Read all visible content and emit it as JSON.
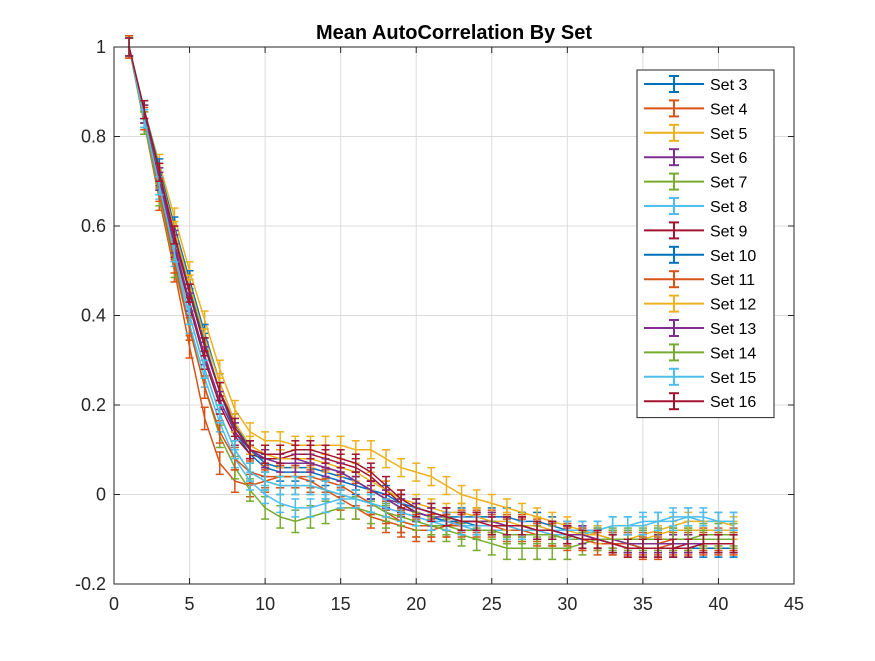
{
  "chart_data": {
    "type": "line",
    "title": "Mean AutoCorrelation By Set",
    "xlabel": "",
    "ylabel": "",
    "xlim": [
      0,
      45
    ],
    "ylim": [
      -0.2,
      1
    ],
    "xticks": [
      "0",
      "5",
      "10",
      "15",
      "20",
      "25",
      "30",
      "35",
      "40",
      "45"
    ],
    "yticks": [
      "-0.2",
      "0",
      "0.2",
      "0.4",
      "0.6",
      "0.8",
      "1"
    ],
    "grid": true,
    "error_bars": true,
    "legend_position": "top-right",
    "x": [
      1,
      2,
      3,
      4,
      5,
      6,
      7,
      8,
      9,
      10,
      11,
      12,
      13,
      14,
      15,
      16,
      17,
      18,
      19,
      20,
      21,
      22,
      23,
      24,
      25,
      26,
      27,
      28,
      29,
      30,
      31,
      32,
      33,
      34,
      35,
      36,
      37,
      38,
      39,
      40,
      41
    ],
    "series": [
      {
        "name": "Set 3",
        "color": "#0072BD",
        "err": 0.02,
        "values": [
          1,
          0.85,
          0.71,
          0.58,
          0.46,
          0.34,
          0.23,
          0.14,
          0.09,
          0.06,
          0.05,
          0.05,
          0.05,
          0.04,
          0.03,
          0.02,
          0.01,
          0,
          -0.02,
          -0.03,
          -0.04,
          -0.05,
          -0.05,
          -0.05,
          -0.05,
          -0.05,
          -0.06,
          -0.06,
          -0.07,
          -0.08,
          -0.08,
          -0.09,
          -0.1,
          -0.11,
          -0.12,
          -0.12,
          -0.12,
          -0.12,
          -0.11,
          -0.11,
          -0.11
        ]
      },
      {
        "name": "Set 4",
        "color": "#D95319",
        "err": 0.025,
        "values": [
          1,
          0.83,
          0.66,
          0.5,
          0.33,
          0.17,
          0.07,
          0.03,
          0.02,
          0.03,
          0.04,
          0.04,
          0.03,
          0.01,
          -0.01,
          -0.03,
          -0.05,
          -0.06,
          -0.07,
          -0.08,
          -0.08,
          -0.07,
          -0.06,
          -0.06,
          -0.06,
          -0.07,
          -0.07,
          -0.08,
          -0.09,
          -0.09,
          -0.1,
          -0.1,
          -0.11,
          -0.11,
          -0.11,
          -0.11,
          -0.1,
          -0.1,
          -0.1,
          -0.1,
          -0.1
        ]
      },
      {
        "name": "Set 5",
        "color": "#EDB120",
        "err": 0.02,
        "values": [
          1,
          0.86,
          0.74,
          0.62,
          0.5,
          0.39,
          0.28,
          0.19,
          0.14,
          0.12,
          0.12,
          0.11,
          0.11,
          0.11,
          0.11,
          0.1,
          0.1,
          0.08,
          0.06,
          0.05,
          0.04,
          0.02,
          0,
          -0.01,
          -0.02,
          -0.03,
          -0.04,
          -0.05,
          -0.06,
          -0.07,
          -0.08,
          -0.09,
          -0.1,
          -0.1,
          -0.09,
          -0.08,
          -0.07,
          -0.06,
          -0.06,
          -0.06,
          -0.07
        ]
      },
      {
        "name": "Set 6",
        "color": "#7E2F8E",
        "err": 0.02,
        "values": [
          1,
          0.85,
          0.71,
          0.57,
          0.45,
          0.33,
          0.23,
          0.16,
          0.1,
          0.08,
          0.08,
          0.08,
          0.07,
          0.06,
          0.05,
          0.03,
          0.01,
          -0.01,
          -0.02,
          -0.04,
          -0.05,
          -0.06,
          -0.06,
          -0.06,
          -0.06,
          -0.07,
          -0.07,
          -0.08,
          -0.08,
          -0.09,
          -0.09,
          -0.1,
          -0.11,
          -0.11,
          -0.11,
          -0.11,
          -0.11,
          -0.11,
          -0.11,
          -0.11,
          -0.11
        ]
      },
      {
        "name": "Set 7",
        "color": "#77AC30",
        "err": 0.025,
        "values": [
          1,
          0.83,
          0.67,
          0.51,
          0.37,
          0.24,
          0.13,
          0.06,
          0.01,
          -0.03,
          -0.05,
          -0.06,
          -0.05,
          -0.04,
          -0.03,
          -0.03,
          -0.04,
          -0.05,
          -0.06,
          -0.07,
          -0.07,
          -0.08,
          -0.09,
          -0.1,
          -0.11,
          -0.12,
          -0.12,
          -0.12,
          -0.12,
          -0.12,
          -0.11,
          -0.1,
          -0.1,
          -0.1,
          -0.1,
          -0.1,
          -0.1,
          -0.1,
          -0.09,
          -0.09,
          -0.09
        ]
      },
      {
        "name": "Set 8",
        "color": "#4DBEEE",
        "err": 0.02,
        "values": [
          1,
          0.84,
          0.68,
          0.53,
          0.38,
          0.26,
          0.16,
          0.08,
          0.03,
          0,
          -0.02,
          -0.03,
          -0.03,
          -0.02,
          -0.01,
          -0.01,
          -0.02,
          -0.03,
          -0.04,
          -0.05,
          -0.06,
          -0.07,
          -0.07,
          -0.08,
          -0.08,
          -0.08,
          -0.08,
          -0.08,
          -0.09,
          -0.09,
          -0.09,
          -0.08,
          -0.07,
          -0.07,
          -0.06,
          -0.06,
          -0.05,
          -0.05,
          -0.06,
          -0.06,
          -0.06
        ]
      },
      {
        "name": "Set 9",
        "color": "#A2142F",
        "err": 0.02,
        "values": [
          1,
          0.85,
          0.7,
          0.55,
          0.42,
          0.3,
          0.2,
          0.13,
          0.09,
          0.08,
          0.08,
          0.09,
          0.09,
          0.08,
          0.07,
          0.06,
          0.04,
          0.01,
          -0.02,
          -0.04,
          -0.05,
          -0.06,
          -0.07,
          -0.07,
          -0.07,
          -0.07,
          -0.08,
          -0.08,
          -0.08,
          -0.09,
          -0.09,
          -0.1,
          -0.11,
          -0.12,
          -0.12,
          -0.12,
          -0.12,
          -0.11,
          -0.11,
          -0.11,
          -0.11
        ]
      },
      {
        "name": "Set 10",
        "color": "#0072BD",
        "err": 0.02,
        "values": [
          1,
          0.86,
          0.73,
          0.6,
          0.48,
          0.36,
          0.25,
          0.16,
          0.1,
          0.07,
          0.06,
          0.06,
          0.06,
          0.05,
          0.04,
          0.03,
          0.01,
          -0.01,
          -0.03,
          -0.04,
          -0.05,
          -0.06,
          -0.06,
          -0.07,
          -0.07,
          -0.07,
          -0.07,
          -0.08,
          -0.08,
          -0.09,
          -0.1,
          -0.1,
          -0.11,
          -0.11,
          -0.12,
          -0.12,
          -0.12,
          -0.12,
          -0.12,
          -0.12,
          -0.12
        ]
      },
      {
        "name": "Set 11",
        "color": "#D95319",
        "err": 0.025,
        "values": [
          1,
          0.84,
          0.68,
          0.52,
          0.37,
          0.24,
          0.14,
          0.08,
          0.05,
          0.04,
          0.04,
          0.04,
          0.04,
          0.03,
          0.02,
          0,
          -0.02,
          -0.04,
          -0.06,
          -0.07,
          -0.07,
          -0.07,
          -0.07,
          -0.07,
          -0.07,
          -0.08,
          -0.08,
          -0.09,
          -0.09,
          -0.1,
          -0.1,
          -0.11,
          -0.11,
          -0.11,
          -0.12,
          -0.12,
          -0.11,
          -0.11,
          -0.11,
          -0.11,
          -0.11
        ]
      },
      {
        "name": "Set 12",
        "color": "#EDB120",
        "err": 0.02,
        "values": [
          1,
          0.85,
          0.72,
          0.59,
          0.47,
          0.35,
          0.25,
          0.16,
          0.11,
          0.09,
          0.08,
          0.08,
          0.08,
          0.07,
          0.06,
          0.05,
          0.03,
          0.01,
          -0.01,
          -0.02,
          -0.03,
          -0.04,
          -0.04,
          -0.05,
          -0.06,
          -0.06,
          -0.07,
          -0.07,
          -0.08,
          -0.08,
          -0.09,
          -0.09,
          -0.1,
          -0.1,
          -0.1,
          -0.09,
          -0.08,
          -0.08,
          -0.08,
          -0.08,
          -0.08
        ]
      },
      {
        "name": "Set 13",
        "color": "#7E2F8E",
        "err": 0.02,
        "values": [
          1,
          0.85,
          0.7,
          0.56,
          0.43,
          0.31,
          0.21,
          0.14,
          0.1,
          0.08,
          0.07,
          0.07,
          0.07,
          0.06,
          0.05,
          0.03,
          0.01,
          -0.01,
          -0.03,
          -0.04,
          -0.05,
          -0.05,
          -0.06,
          -0.06,
          -0.06,
          -0.07,
          -0.07,
          -0.08,
          -0.08,
          -0.09,
          -0.09,
          -0.1,
          -0.1,
          -0.11,
          -0.11,
          -0.11,
          -0.11,
          -0.11,
          -0.11,
          -0.11,
          -0.11
        ]
      },
      {
        "name": "Set 14",
        "color": "#77AC30",
        "err": 0.02,
        "values": [
          1,
          0.84,
          0.69,
          0.54,
          0.4,
          0.28,
          0.18,
          0.1,
          0.05,
          0.03,
          0.02,
          0.02,
          0.02,
          0.01,
          0,
          -0.01,
          -0.02,
          -0.04,
          -0.05,
          -0.06,
          -0.07,
          -0.07,
          -0.08,
          -0.08,
          -0.08,
          -0.09,
          -0.09,
          -0.09,
          -0.09,
          -0.1,
          -0.1,
          -0.1,
          -0.1,
          -0.1,
          -0.1,
          -0.1,
          -0.1,
          -0.1,
          -0.1,
          -0.1,
          -0.1
        ]
      },
      {
        "name": "Set 15",
        "color": "#4DBEEE",
        "err": 0.02,
        "values": [
          1,
          0.84,
          0.69,
          0.54,
          0.4,
          0.28,
          0.18,
          0.1,
          0.05,
          0.03,
          0.02,
          0.02,
          0.02,
          0.01,
          0,
          -0.01,
          -0.02,
          -0.03,
          -0.04,
          -0.05,
          -0.06,
          -0.06,
          -0.07,
          -0.07,
          -0.07,
          -0.07,
          -0.08,
          -0.08,
          -0.08,
          -0.08,
          -0.08,
          -0.08,
          -0.07,
          -0.07,
          -0.07,
          -0.06,
          -0.06,
          -0.05,
          -0.05,
          -0.06,
          -0.06
        ]
      },
      {
        "name": "Set 16",
        "color": "#A2142F",
        "err": 0.02,
        "values": [
          1,
          0.86,
          0.72,
          0.58,
          0.45,
          0.33,
          0.23,
          0.15,
          0.1,
          0.09,
          0.09,
          0.1,
          0.1,
          0.09,
          0.08,
          0.07,
          0.05,
          0.02,
          -0.01,
          -0.03,
          -0.04,
          -0.05,
          -0.06,
          -0.06,
          -0.07,
          -0.07,
          -0.07,
          -0.08,
          -0.08,
          -0.09,
          -0.1,
          -0.1,
          -0.11,
          -0.12,
          -0.12,
          -0.12,
          -0.12,
          -0.12,
          -0.11,
          -0.11,
          -0.11
        ]
      }
    ]
  }
}
